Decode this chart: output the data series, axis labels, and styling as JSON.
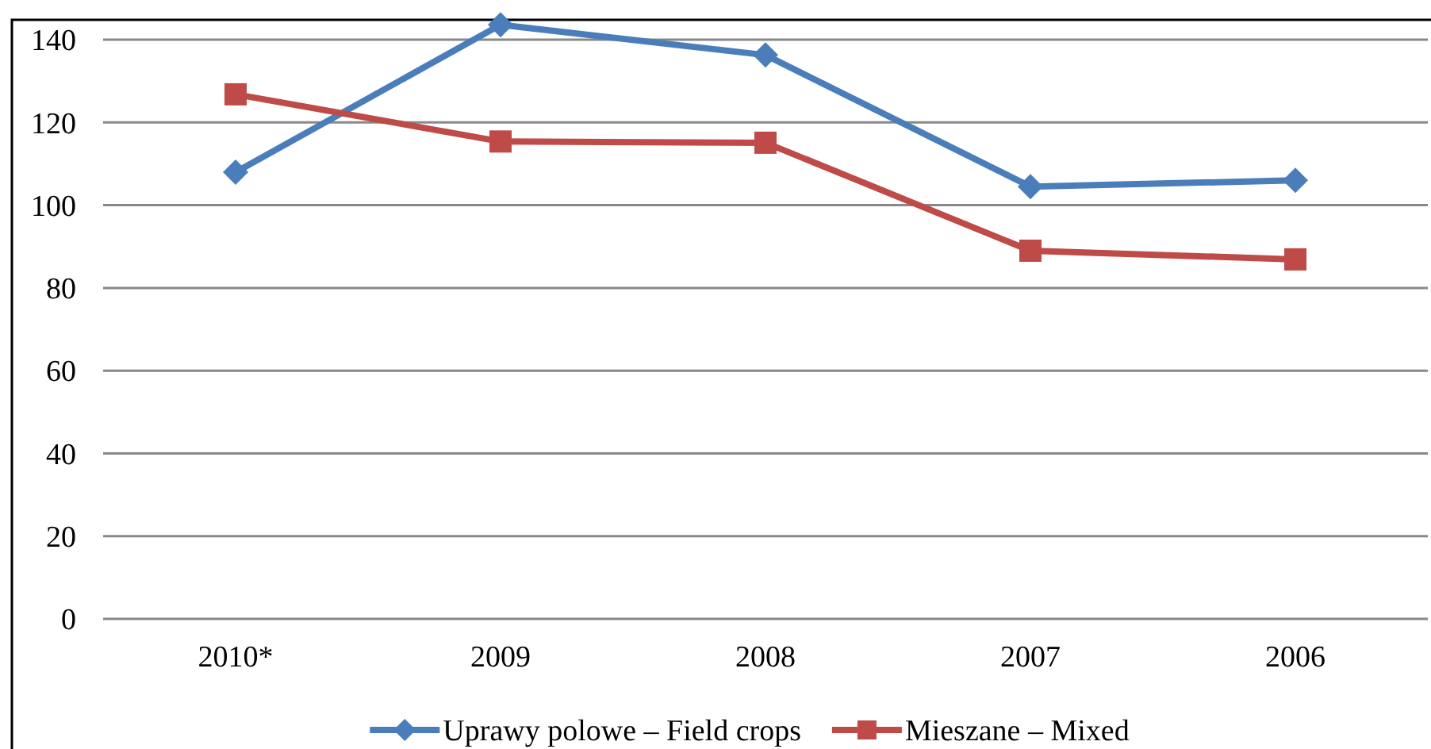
{
  "chart_data": {
    "type": "line",
    "categories": [
      "2010*",
      "2009",
      "2008",
      "2007",
      "2006"
    ],
    "series": [
      {
        "name": "Uprawy polowe – Field crops",
        "color": "#4a7ebb",
        "marker": "diamond",
        "values": [
          108,
          143.6,
          136.3,
          104.5,
          106
        ]
      },
      {
        "name": "Mieszane – Mixed",
        "color": "#be4b48",
        "marker": "square",
        "values": [
          126.8,
          115.4,
          115.1,
          89,
          86.9
        ]
      }
    ],
    "ylim": [
      0,
      145
    ],
    "yticks": [
      0,
      20,
      40,
      60,
      80,
      100,
      120,
      140
    ],
    "grid": "y",
    "legend": "bottom",
    "line_style": "solid"
  }
}
